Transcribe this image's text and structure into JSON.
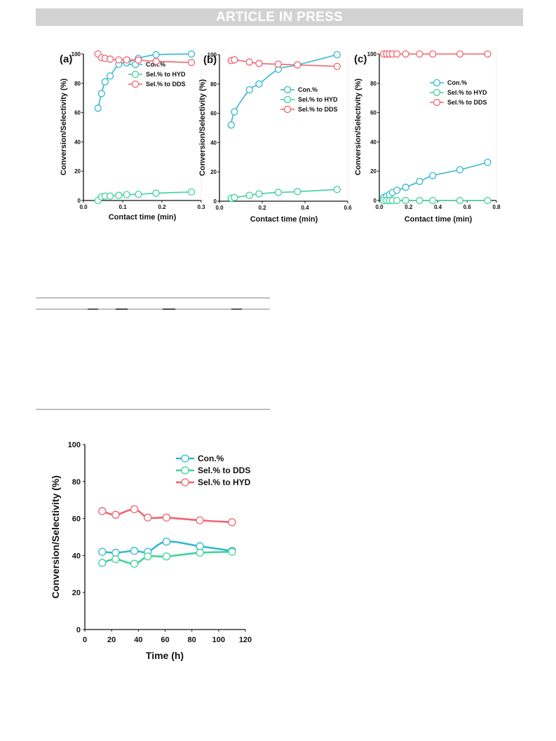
{
  "header": {
    "banner_text": "ARTICLE IN PRESS"
  },
  "colors": {
    "con": "#35b7d3",
    "hyd": "#3fd39a",
    "dds": "#f0646f",
    "banner_bg": "#d2d2d2"
  },
  "chart_data": [
    {
      "panel_label": "(a)",
      "type": "line",
      "xlabel": "Contact time (min)",
      "ylabel": "Conversion/Selectivity (%)",
      "xlim": [
        0.0,
        0.3
      ],
      "ylim": [
        0,
        100
      ],
      "xticks": [
        0.0,
        0.1,
        0.2,
        0.3
      ],
      "xtick_labels": [
        "0.0",
        "0.1",
        "0.2",
        "0.3"
      ],
      "yticks": [
        0,
        20,
        40,
        60,
        80,
        100
      ],
      "ytick_labels": [
        "0",
        "20",
        "40",
        "60",
        "80",
        "100"
      ],
      "legend": "top-right",
      "series": [
        {
          "name": "Con.%",
          "color": "#35b7d3",
          "x": [
            0.037,
            0.046,
            0.055,
            0.068,
            0.09,
            0.11,
            0.14,
            0.185,
            0.275
          ],
          "y": [
            63,
            73,
            81,
            85,
            93,
            94,
            97,
            99.5,
            100
          ]
        },
        {
          "name": "Sel.% to HYD",
          "color": "#3fd39a",
          "x": [
            0.037,
            0.046,
            0.055,
            0.068,
            0.09,
            0.11,
            0.14,
            0.185,
            0.275
          ],
          "y": [
            0,
            2.5,
            3,
            3,
            3.5,
            4,
            4.2,
            5,
            5.8
          ]
        },
        {
          "name": "Sel.% to DDS",
          "color": "#f0646f",
          "x": [
            0.037,
            0.046,
            0.055,
            0.068,
            0.09,
            0.11,
            0.14,
            0.185,
            0.275
          ],
          "y": [
            100,
            97.5,
            97,
            96.5,
            96,
            96,
            95.8,
            95,
            94.2
          ]
        }
      ]
    },
    {
      "panel_label": "(b)",
      "type": "line",
      "xlabel": "Contact time (min)",
      "ylabel": "Conversion/Selectivity (%)",
      "xlim": [
        0.0,
        0.6
      ],
      "ylim": [
        0,
        100
      ],
      "xticks": [
        0.0,
        0.2,
        0.4,
        0.6
      ],
      "xtick_labels": [
        "0.0",
        "0.2",
        "0.4",
        "0.6"
      ],
      "yticks": [
        0,
        20,
        40,
        60,
        80,
        100
      ],
      "ytick_labels": [
        "0",
        "20",
        "40",
        "60",
        "80",
        "100"
      ],
      "legend": "center-right",
      "series": [
        {
          "name": "Con.%",
          "color": "#35b7d3",
          "x": [
            0.055,
            0.07,
            0.14,
            0.185,
            0.275,
            0.365,
            0.55
          ],
          "y": [
            52,
            61,
            76,
            80,
            90,
            93,
            100
          ]
        },
        {
          "name": "Sel.% to HYD",
          "color": "#3fd39a",
          "x": [
            0.055,
            0.07,
            0.14,
            0.185,
            0.275,
            0.365,
            0.55
          ],
          "y": [
            2,
            2.5,
            4,
            5,
            6,
            6.5,
            8
          ]
        },
        {
          "name": "Sel.% to DDS",
          "color": "#f0646f",
          "x": [
            0.055,
            0.07,
            0.14,
            0.185,
            0.275,
            0.365,
            0.55
          ],
          "y": [
            96,
            96.5,
            95,
            94,
            93.5,
            93,
            92
          ]
        }
      ]
    },
    {
      "panel_label": "(c)",
      "type": "line",
      "xlabel": "Contact time (min)",
      "ylabel": "Conversion/Selectivity (%)",
      "xlim": [
        0.0,
        0.8
      ],
      "ylim": [
        0,
        100
      ],
      "xticks": [
        0.0,
        0.2,
        0.4,
        0.6,
        0.8
      ],
      "xtick_labels": [
        "0.0",
        "0.2",
        "0.4",
        "0.6",
        "0.8"
      ],
      "yticks": [
        0,
        20,
        40,
        60,
        80,
        100
      ],
      "ytick_labels": [
        "0",
        "20",
        "40",
        "60",
        "80",
        "100"
      ],
      "legend": "top-right",
      "series": [
        {
          "name": "Con.%",
          "color": "#35b7d3",
          "x": [
            0.03,
            0.05,
            0.07,
            0.09,
            0.12,
            0.18,
            0.275,
            0.365,
            0.55,
            0.74
          ],
          "y": [
            2,
            3,
            4,
            5.5,
            7,
            9,
            13,
            17,
            21,
            26
          ]
        },
        {
          "name": "Sel.% to HYD",
          "color": "#3fd39a",
          "x": [
            0.03,
            0.05,
            0.07,
            0.09,
            0.12,
            0.18,
            0.275,
            0.365,
            0.55,
            0.74
          ],
          "y": [
            0,
            0,
            0,
            0,
            0,
            0,
            0,
            0,
            0,
            0
          ]
        },
        {
          "name": "Sel.% to DDS",
          "color": "#f0646f",
          "x": [
            0.03,
            0.05,
            0.07,
            0.09,
            0.12,
            0.18,
            0.275,
            0.365,
            0.55,
            0.74
          ],
          "y": [
            100,
            100,
            100,
            100,
            100,
            100,
            100,
            100,
            100,
            100
          ]
        }
      ]
    },
    {
      "type": "line",
      "xlabel": "Time (h)",
      "ylabel": "Conversion/Selectivity (%)",
      "xlim": [
        0,
        120
      ],
      "ylim": [
        0,
        100
      ],
      "xticks": [
        0,
        20,
        40,
        60,
        80,
        100,
        120
      ],
      "xtick_labels": [
        "0",
        "20",
        "40",
        "60",
        "80",
        "100",
        "120"
      ],
      "yticks": [
        0,
        20,
        40,
        60,
        80,
        100
      ],
      "ytick_labels": [
        "0",
        "20",
        "40",
        "60",
        "80",
        "100"
      ],
      "legend": "top-right",
      "series": [
        {
          "name": "Con.%",
          "color": "#35b7d3",
          "x": [
            13,
            23,
            37,
            47,
            61,
            86,
            110
          ],
          "y": [
            42,
            41.5,
            42.5,
            42,
            47.5,
            45,
            42.5
          ]
        },
        {
          "name": "Sel.% to DDS",
          "color": "#3fd39a",
          "x": [
            13,
            23,
            37,
            47,
            61,
            86,
            110
          ],
          "y": [
            36,
            38,
            35.5,
            39.5,
            39.5,
            41.5,
            42
          ]
        },
        {
          "name": "Sel.% to HYD",
          "color": "#f0646f",
          "x": [
            13,
            23,
            37,
            47,
            61,
            86,
            110
          ],
          "y": [
            64,
            62,
            65,
            60.5,
            60.5,
            59,
            58
          ]
        }
      ]
    }
  ]
}
